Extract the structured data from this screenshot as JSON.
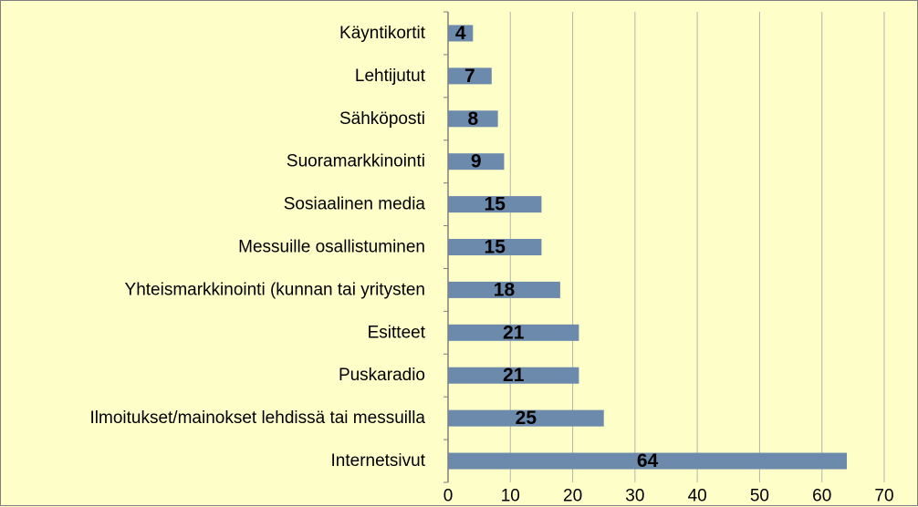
{
  "chart_data": {
    "type": "bar",
    "orientation": "horizontal",
    "mirrored": true,
    "categories": [
      "Internetsivut",
      "Ilmoitukset/mainokset lehdissä tai messuilla",
      "Puskaradio",
      "Esitteet",
      "Yhteismarkkinointi (kunnan tai yritysten",
      "Messuille osallistuminen",
      "Sosiaalinen media",
      "Suoramarkkinointi",
      "Sähköposti",
      "Lehtijutut",
      "Käyntikortit"
    ],
    "values": [
      64,
      25,
      21,
      21,
      18,
      15,
      15,
      9,
      8,
      7,
      4
    ],
    "xlim": [
      0,
      70
    ],
    "ticks": [
      0,
      10,
      20,
      30,
      40,
      50,
      60,
      70
    ],
    "grid": "vertical",
    "bar_color": "#6b8aac",
    "gridline_color": "#b3b3b3",
    "background": "#fefec8"
  }
}
